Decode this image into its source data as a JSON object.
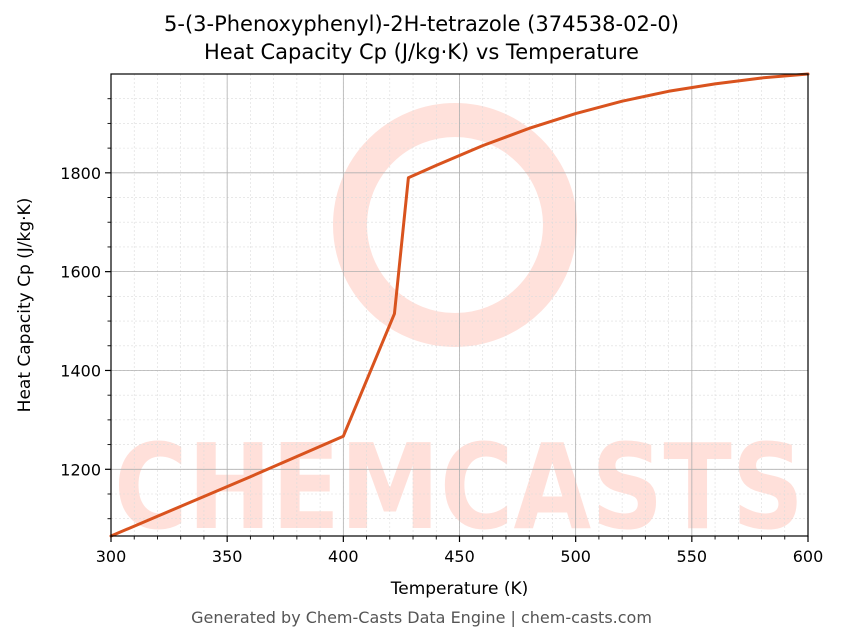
{
  "title_line1": "5-(3-Phenoxyphenyl)-2H-tetrazole (374538-02-0)",
  "title_line2": "Heat Capacity Cp (J/kg·K) vs Temperature",
  "footer": "Generated by Chem-Casts Data Engine | chem-casts.com",
  "watermark": "CHEMCASTS",
  "colors": {
    "line": "#d9531e",
    "watermark": "#ffd9d2",
    "grid": "#b0b0b0"
  },
  "chart_data": {
    "type": "line",
    "title": "5-(3-Phenoxyphenyl)-2H-tetrazole (374538-02-0)\nHeat Capacity Cp (J/kg·K) vs Temperature",
    "xlabel": "Temperature (K)",
    "ylabel": "Heat Capacity Cp (J/kg·K)",
    "xlim": [
      300,
      600
    ],
    "ylim": [
      1065,
      2000
    ],
    "xticks": [
      300,
      350,
      400,
      450,
      500,
      550,
      600
    ],
    "yticks": [
      1200,
      1400,
      1600,
      1800
    ],
    "grid": true,
    "series": [
      {
        "x": [
          300,
          320,
          340,
          360,
          380,
          400,
          422,
          428,
          440,
          460,
          480,
          500,
          520,
          540,
          560,
          580,
          600
        ],
        "y": [
          1065,
          1105,
          1145,
          1185,
          1226,
          1267,
          1515,
          1790,
          1815,
          1855,
          1890,
          1920,
          1945,
          1965,
          1980,
          1992,
          2000
        ]
      }
    ]
  }
}
